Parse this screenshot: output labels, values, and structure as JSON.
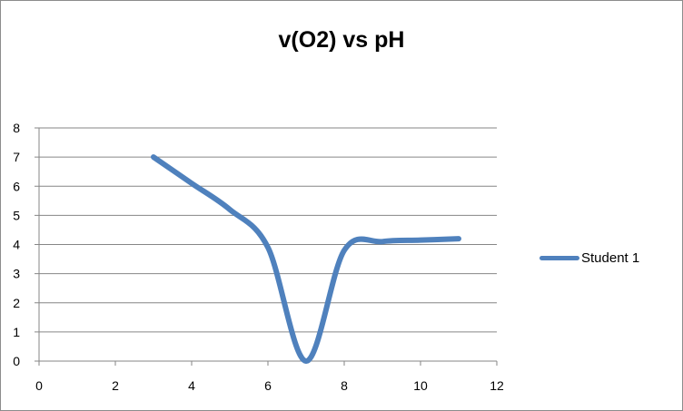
{
  "chart_data": {
    "type": "line",
    "title": "v(O2) vs pH",
    "xlabel": "",
    "ylabel": "",
    "xlim": [
      0,
      12
    ],
    "ylim": [
      0,
      8
    ],
    "x_ticks": [
      0,
      2,
      4,
      6,
      8,
      10,
      12
    ],
    "y_ticks": [
      0,
      1,
      2,
      3,
      4,
      5,
      6,
      7,
      8
    ],
    "grid": "horizontal",
    "legend_position": "right",
    "smooth": true,
    "series": [
      {
        "name": "Student 1",
        "color": "#4f81bd",
        "x": [
          3,
          4,
          5,
          6,
          7,
          8,
          9,
          10,
          11
        ],
        "y": [
          7,
          6.1,
          5.2,
          3.9,
          0,
          3.8,
          4.1,
          4.15,
          4.2
        ]
      }
    ]
  }
}
